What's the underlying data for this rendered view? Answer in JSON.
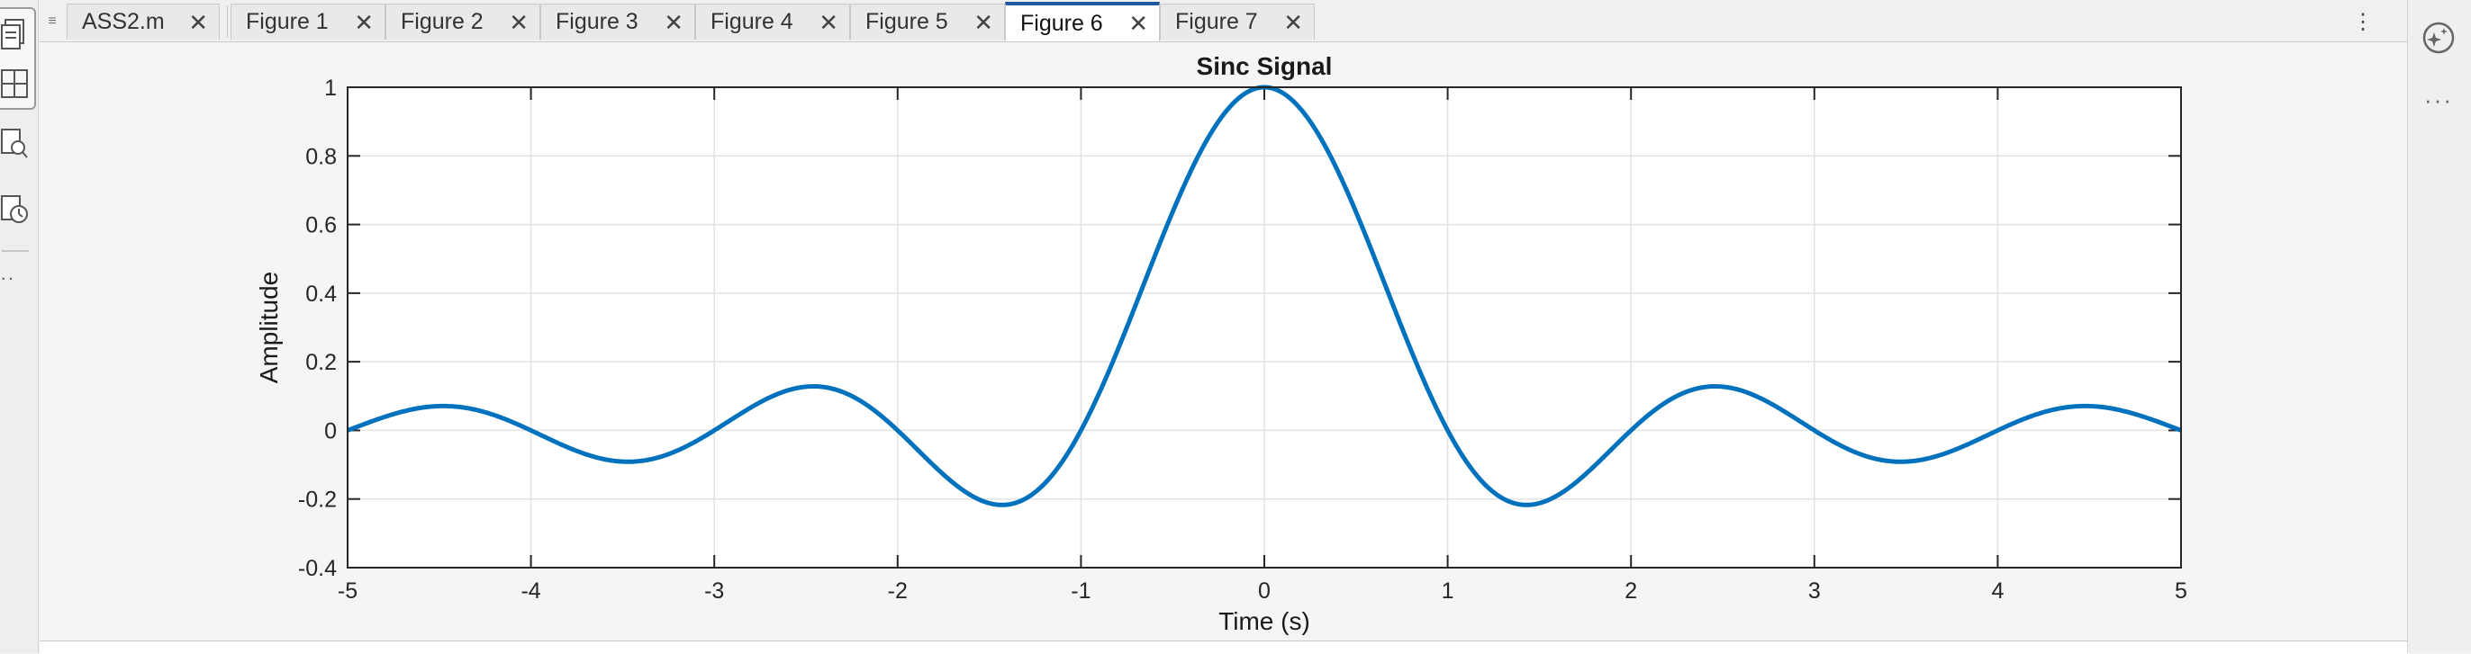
{
  "tabs": [
    {
      "label": "ASS2.m"
    },
    {
      "label": "Figure 1"
    },
    {
      "label": "Figure 2"
    },
    {
      "label": "Figure 3"
    },
    {
      "label": "Figure 4"
    },
    {
      "label": "Figure 5"
    },
    {
      "label": "Figure 6",
      "active": true
    },
    {
      "label": "Figure 7"
    }
  ],
  "close_glyph": "✕",
  "chart_data": {
    "type": "line",
    "title": "Sinc Signal",
    "xlabel": "Time (s)",
    "ylabel": "Amplitude",
    "xlim": [
      -5,
      5
    ],
    "ylim": [
      -0.4,
      1
    ],
    "xticks": [
      "-5",
      "-4",
      "-3",
      "-2",
      "-1",
      "0",
      "1",
      "2",
      "3",
      "4",
      "5"
    ],
    "yticks": [
      "-0.4",
      "-0.2",
      "0",
      "0.2",
      "0.4",
      "0.6",
      "0.8",
      "1"
    ],
    "grid": true,
    "series": [
      {
        "color": "#0072BD",
        "function": "sinc",
        "x": [
          -5,
          -4.5,
          -4,
          -3.5,
          -3,
          -2.5,
          -2,
          -1.5,
          -1,
          -0.5,
          0,
          0.5,
          1,
          1.5,
          2,
          2.5,
          3,
          3.5,
          4,
          4.5,
          5
        ],
        "y": [
          0,
          0.0707,
          0,
          -0.0909,
          0,
          0.1273,
          0,
          -0.2122,
          0,
          0.6366,
          1,
          0.6366,
          0,
          -0.2122,
          0,
          0.1273,
          0,
          -0.0909,
          0,
          0.0707,
          0
        ]
      }
    ]
  }
}
